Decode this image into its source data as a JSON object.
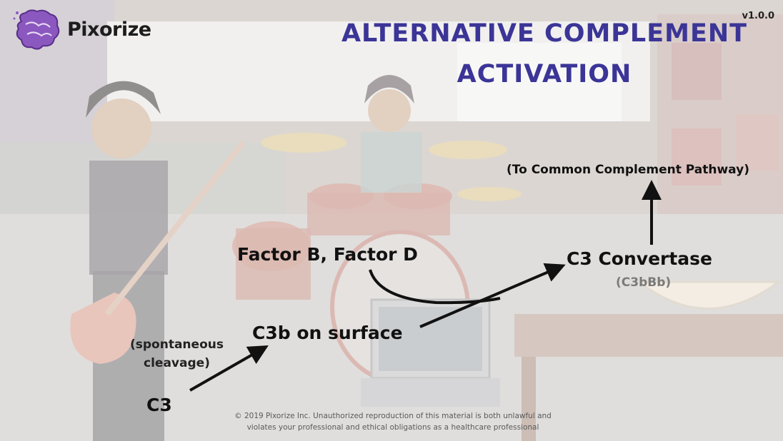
{
  "brand": {
    "name": "Pixorize",
    "logo_icon": "brain-icon"
  },
  "version": "v1.0.0",
  "title": {
    "line1": "ALTERNATIVE COMPLEMENT",
    "line2": "ACTIVATION",
    "color": "#3b3597"
  },
  "diagram": {
    "nodes": {
      "c3": "C3",
      "spontaneous_cleavage": "(spontaneous\ncleavage)",
      "c3b_surface": "C3b on surface",
      "factors": "Factor B, Factor D",
      "c3_convertase": "C3 Convertase",
      "c3bbb": "(C3bBb)",
      "common_pathway": "(To Common Complement Pathway)"
    }
  },
  "copyright": {
    "line1": "© 2019 Pixorize Inc. Unauthorized reproduction of this material is both unlawful and",
    "line2": "violates your professional and ethical obligations as a healthcare professional"
  }
}
